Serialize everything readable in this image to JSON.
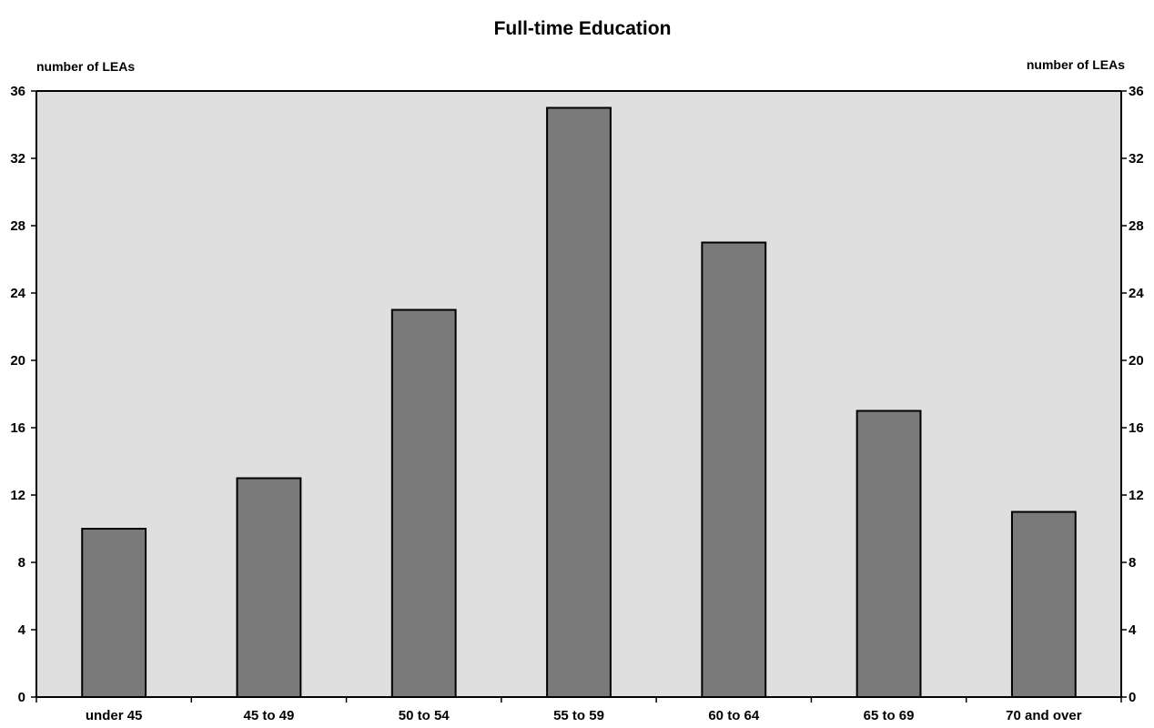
{
  "chart_data": {
    "type": "bar",
    "title": "Full-time Education",
    "ylabel_left": "number of LEAs",
    "ylabel_right": "number of LEAs",
    "categories": [
      "under 45",
      "45 to 49",
      "50 to 54",
      "55 to 59",
      "60 to 64",
      "65 to 69",
      "70 and over"
    ],
    "values": [
      10,
      13,
      23,
      35,
      27,
      17,
      11
    ],
    "ylim": [
      0,
      36
    ],
    "yticks": [
      0,
      4,
      8,
      12,
      16,
      20,
      24,
      28,
      32,
      36
    ],
    "grid": false,
    "legend": "none",
    "colors": {
      "plot_background": "#dfdfdf",
      "bar_fill": "#7a7a7a",
      "bar_stroke": "#000000"
    }
  }
}
